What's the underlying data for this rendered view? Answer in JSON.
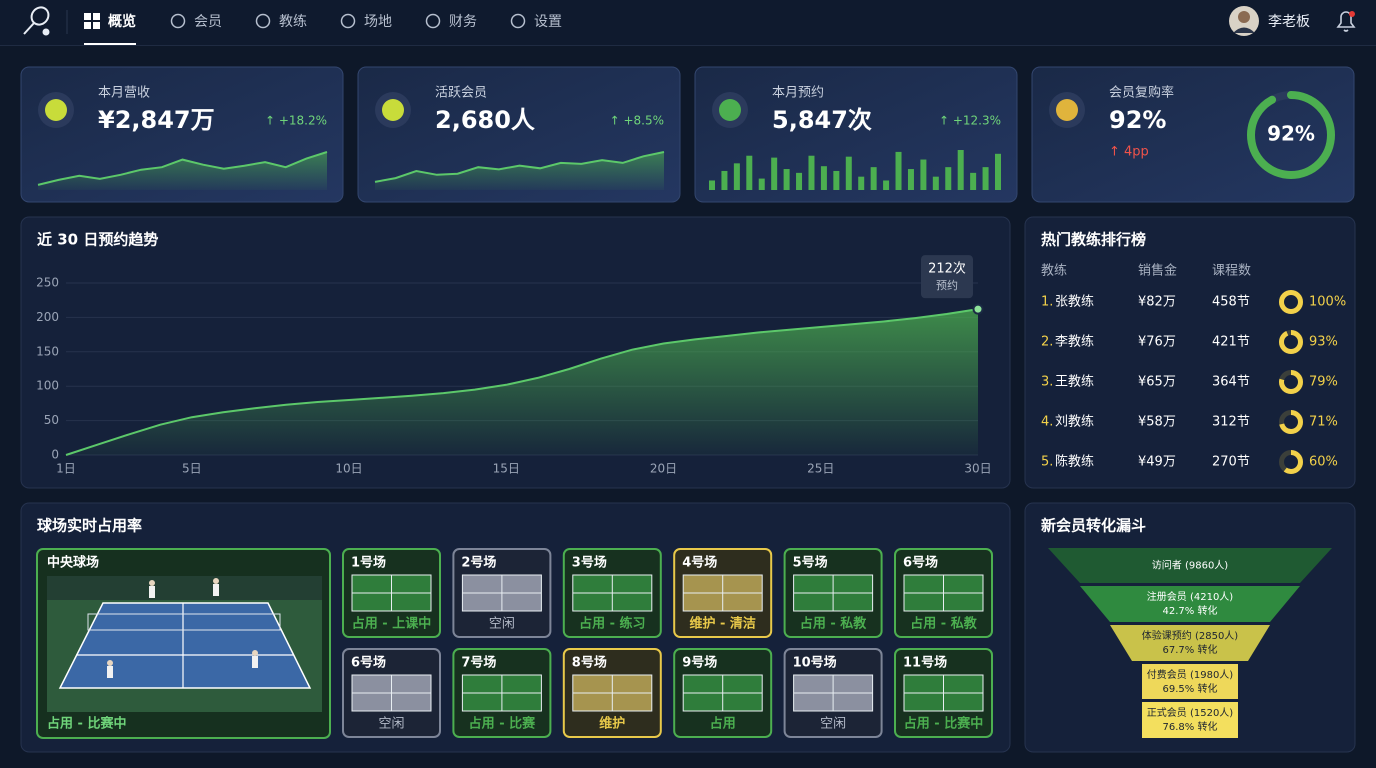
{
  "nav": {
    "items": [
      "概览",
      "会员",
      "教练",
      "场地",
      "财务",
      "设置"
    ],
    "user": "李老板"
  },
  "kpis": [
    {
      "title": "本月营收",
      "value": "¥2,847万",
      "change": "↑ +18.2%",
      "spark": [
        10,
        20,
        28,
        22,
        30,
        40,
        45,
        60,
        50,
        42,
        48,
        55,
        45,
        62,
        75
      ]
    },
    {
      "title": "活跃会员",
      "value": "2,680人",
      "change": "↑ +8.5%",
      "spark": [
        15,
        22,
        35,
        28,
        30,
        42,
        38,
        45,
        40,
        50,
        48,
        55,
        50,
        62,
        70
      ]
    },
    {
      "title": "本月预约",
      "value": "5,847次",
      "change": "↑ +12.3%",
      "bars": [
        10,
        20,
        28,
        36,
        12,
        34,
        22,
        18,
        36,
        25,
        20,
        35,
        14,
        24,
        10,
        40,
        22,
        32,
        14,
        24,
        42,
        18,
        24,
        38
      ]
    },
    {
      "title": "会员复购率",
      "value": "92%",
      "change": "↑ 4pp",
      "gauge": 92,
      "gauge_label": "92%"
    }
  ],
  "chart_data": {
    "type": "area",
    "title": "近 30 日预约趋势",
    "categories": [
      "1日",
      null,
      null,
      null,
      "5日",
      null,
      null,
      null,
      null,
      "10日",
      null,
      null,
      null,
      null,
      "15日",
      null,
      null,
      null,
      null,
      "20日",
      null,
      null,
      null,
      null,
      "25日",
      null,
      null,
      null,
      null,
      "30日"
    ],
    "values": [
      0,
      15,
      30,
      44,
      55,
      62,
      68,
      73,
      77,
      80,
      83,
      86,
      90,
      95,
      102,
      112,
      125,
      140,
      153,
      162,
      168,
      173,
      178,
      182,
      186,
      190,
      194,
      199,
      205,
      212
    ],
    "value_labels": [
      null,
      null,
      null,
      null,
      null,
      null,
      null,
      null,
      null,
      null,
      null,
      null,
      null,
      null,
      null,
      null,
      null,
      null,
      null,
      null,
      null,
      null,
      null,
      null,
      null,
      null,
      null,
      null,
      null,
      "212次"
    ],
    "annotation": "预约",
    "ylim": [
      0,
      250
    ],
    "yticks": [
      0,
      50,
      100,
      150,
      200,
      250
    ],
    "color": "#4caf50",
    "grid": true
  },
  "coaches": {
    "title": "热门教练排行榜",
    "columns": [
      "教练",
      "销售金",
      "课程数"
    ],
    "rows": [
      {
        "rank": "1.",
        "name": "张教练",
        "sales": "¥82万",
        "lessons": "458节",
        "rate": 100,
        "rate_label": "100%"
      },
      {
        "rank": "2.",
        "name": "李教练",
        "sales": "¥76万",
        "lessons": "421节",
        "rate": 93,
        "rate_label": "93%"
      },
      {
        "rank": "3.",
        "name": "王教练",
        "sales": "¥65万",
        "lessons": "364节",
        "rate": 79,
        "rate_label": "79%"
      },
      {
        "rank": "4.",
        "name": "刘教练",
        "sales": "¥58万",
        "lessons": "312节",
        "rate": 71,
        "rate_label": "71%"
      },
      {
        "rank": "5.",
        "name": "陈教练",
        "sales": "¥49万",
        "lessons": "270节",
        "rate": 60,
        "rate_label": "60%"
      }
    ]
  },
  "courts": {
    "title": "球场实时占用率",
    "main": {
      "name": "中央球场",
      "status": "占用 - 比赛中"
    },
    "items": [
      {
        "name": "1号场",
        "status": "占用 - 上课中",
        "color": "#4caf50"
      },
      {
        "name": "2号场",
        "status": "空闲",
        "color": "#7d8598"
      },
      {
        "name": "3号场",
        "status": "占用 - 练习",
        "color": "#4caf50"
      },
      {
        "name": "4号场",
        "status": "维护 - 清洁",
        "color": "#e8c94a"
      },
      {
        "name": "5号场",
        "status": "占用 - 私教",
        "color": "#4caf50"
      },
      {
        "name": "6号场",
        "status": "占用 - 私教",
        "color": "#4caf50"
      },
      {
        "name": "6号场",
        "status": "空闲",
        "color": "#7d8598"
      },
      {
        "name": "7号场",
        "status": "占用 - 比赛",
        "color": "#4caf50"
      },
      {
        "name": "8号场",
        "status": "维护",
        "color": "#e8c94a"
      },
      {
        "name": "9号场",
        "status": "占用",
        "color": "#4caf50"
      },
      {
        "name": "10号场",
        "status": "空闲",
        "color": "#7d8598"
      },
      {
        "name": "11号场",
        "status": "占用 - 比赛中",
        "color": "#4caf50"
      }
    ]
  },
  "funnel": {
    "title": "新会员转化漏斗",
    "stages": [
      {
        "label": "访问者 (9860人)",
        "color": "#1f5a32"
      },
      {
        "label": "注册会员 (4210人)",
        "rate": "42.7% 转化",
        "color": "#2f8a3f"
      },
      {
        "label": "体验课预约 (2850人)",
        "rate": "67.7% 转化",
        "color": "#c9c24a"
      },
      {
        "label": "付费会员 (1980人)",
        "rate": "69.5% 转化",
        "color": "#eed85a"
      },
      {
        "label": "正式会员 (1520人)",
        "rate": "76.8% 转化",
        "color": "#f3df5e"
      }
    ]
  }
}
